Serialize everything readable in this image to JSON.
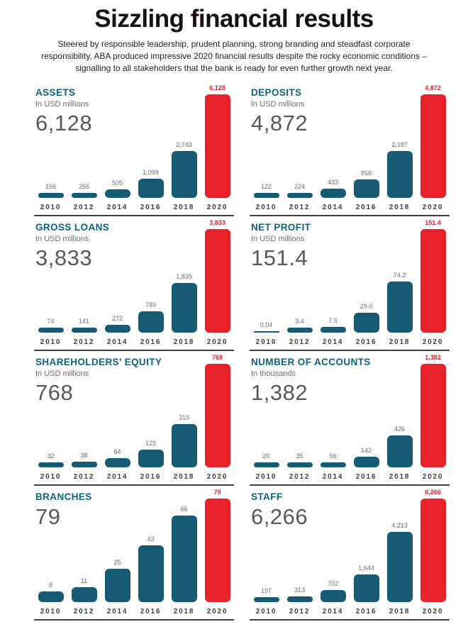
{
  "header": {
    "title": "Sizzling financial results",
    "subtitle_lines": [
      "Steered by responsible leadership, prudent planning, strong branding and steadfast corporate",
      "responsibility, ABA produced impressive 2020 financial results despite the rocky economic conditions –",
      "signalling to all stakeholders that the bank is ready for even further growth next year."
    ]
  },
  "colors": {
    "bar_teal": "#175a73",
    "bar_red": "#e8222b",
    "heading_teal": "#0f6378",
    "big_number_gray": "#58595b",
    "label_gray": "#6d6e71",
    "year_gray": "#414042",
    "axis_line": "#414042"
  },
  "chart_data": [
    {
      "type": "bar",
      "title": "ASSETS",
      "unit": "In USD millions",
      "big_number": "6,128",
      "categories": [
        "2010",
        "2012",
        "2014",
        "2016",
        "2018",
        "2020"
      ],
      "values": [
        156,
        265,
        505,
        1099,
        2743,
        6128
      ],
      "value_labels": [
        "156",
        "265",
        "505",
        "1,099",
        "2,743",
        "6,128"
      ],
      "highlight_index": 5
    },
    {
      "type": "bar",
      "title": "DEPOSITS",
      "unit": "In USD millions",
      "big_number": "4,872",
      "categories": [
        "2010",
        "2012",
        "2014",
        "2016",
        "2018",
        "2020"
      ],
      "values": [
        122,
        224,
        433,
        856,
        2187,
        4872
      ],
      "value_labels": [
        "122",
        "224",
        "433",
        "856",
        "2,187",
        "4,872"
      ],
      "highlight_index": 5
    },
    {
      "type": "bar",
      "title": "GROSS LOANS",
      "unit": "In USD millions",
      "big_number": "3,833",
      "categories": [
        "2010",
        "2012",
        "2014",
        "2016",
        "2018",
        "2020"
      ],
      "values": [
        74,
        141,
        272,
        789,
        1835,
        3833
      ],
      "value_labels": [
        "74",
        "141",
        "272",
        "789",
        "1,835",
        "3,833"
      ],
      "highlight_index": 5
    },
    {
      "type": "bar",
      "title": "NET PROFIT",
      "unit": "In USD millions",
      "big_number": "151.4",
      "categories": [
        "2010",
        "2012",
        "2014",
        "2016",
        "2018",
        "2020"
      ],
      "values": [
        0.04,
        3.4,
        7.5,
        29.0,
        74.2,
        151.4
      ],
      "value_labels": [
        "0.04",
        "3.4",
        "7.5",
        "29.0",
        "74.2",
        "151.4"
      ],
      "highlight_index": 5
    },
    {
      "type": "bar",
      "title": "SHAREHOLDERS’ EQUITY",
      "unit": "In USD millions",
      "big_number": "768",
      "categories": [
        "2010",
        "2012",
        "2014",
        "2016",
        "2018",
        "2020"
      ],
      "values": [
        32,
        38,
        64,
        129,
        319,
        768
      ],
      "value_labels": [
        "32",
        "38",
        "64",
        "129",
        "319",
        "768"
      ],
      "highlight_index": 5
    },
    {
      "type": "bar",
      "title": "NUMBER OF ACCOUNTS",
      "unit": "In thousands",
      "big_number": "1,382",
      "categories": [
        "2010",
        "2012",
        "2014",
        "2016",
        "2018",
        "2020"
      ],
      "values": [
        20,
        35,
        56,
        142,
        426,
        1382
      ],
      "value_labels": [
        "20",
        "35",
        "56",
        "142",
        "426",
        "1,382"
      ],
      "highlight_index": 5
    },
    {
      "type": "bar",
      "title": "BRANCHES",
      "unit": "",
      "big_number": "79",
      "categories": [
        "2010",
        "2012",
        "2014",
        "2016",
        "2018",
        "2020"
      ],
      "values": [
        8,
        11,
        25,
        43,
        66,
        79
      ],
      "value_labels": [
        "8",
        "11",
        "25",
        "43",
        "66",
        "79"
      ],
      "highlight_index": 5
    },
    {
      "type": "bar",
      "title": "STAFF",
      "unit": "",
      "big_number": "6,266",
      "categories": [
        "2010",
        "2012",
        "2014",
        "2016",
        "2018",
        "2020"
      ],
      "values": [
        197,
        313,
        702,
        1644,
        4213,
        6266
      ],
      "value_labels": [
        "197",
        "313",
        "702",
        "1,644",
        "4,213",
        "6,266"
      ],
      "highlight_index": 5
    }
  ]
}
